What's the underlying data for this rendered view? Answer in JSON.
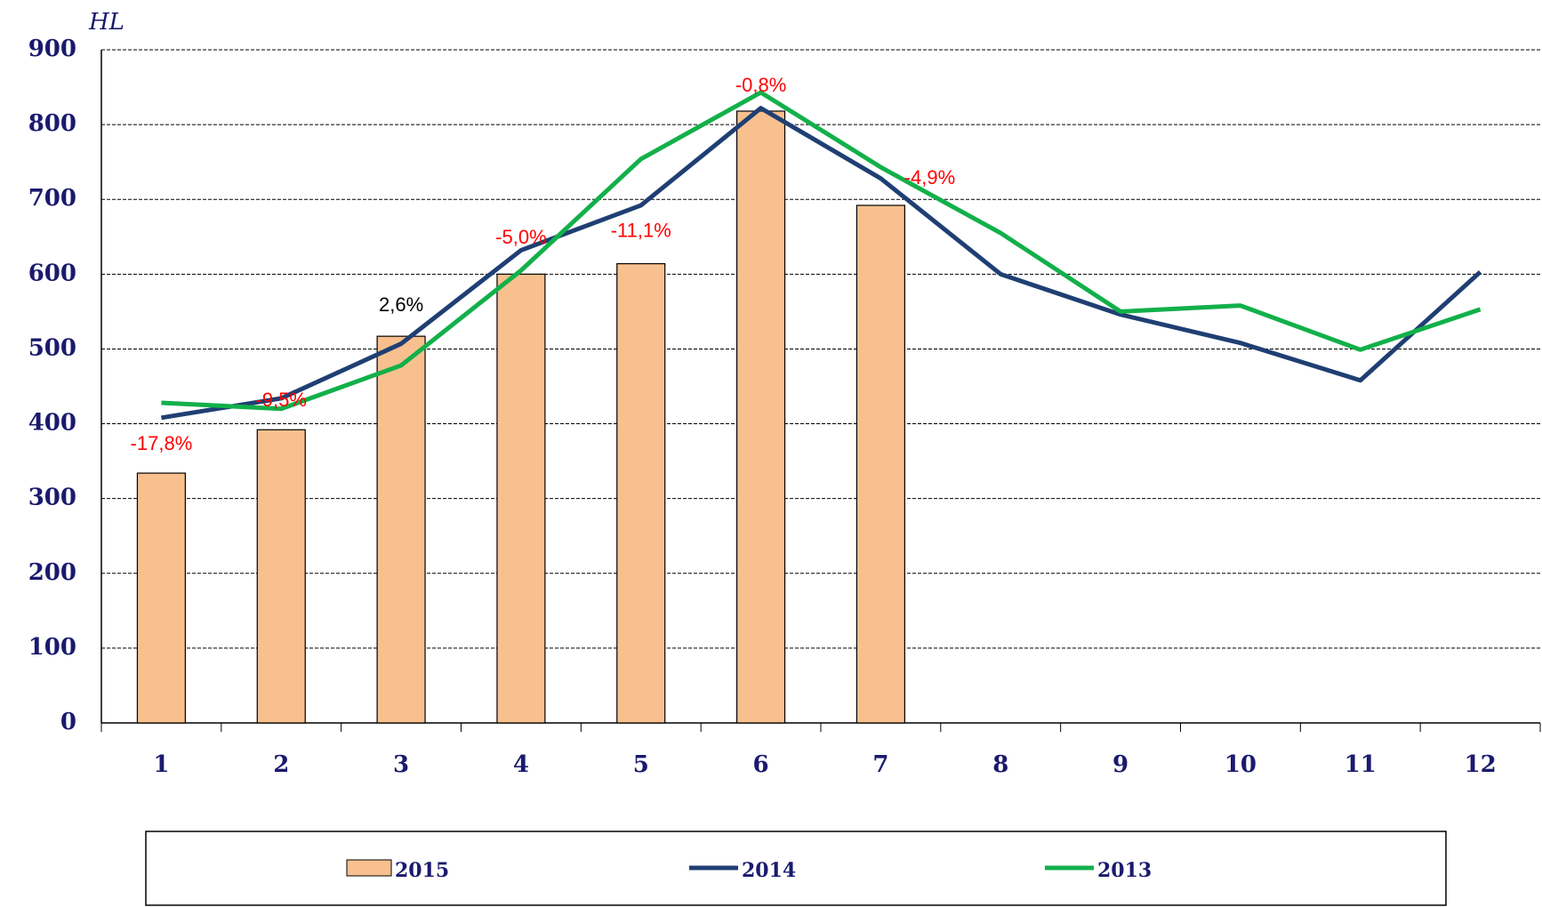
{
  "chart_data": {
    "type": "bar-line",
    "y_label": "HL",
    "categories": [
      "1",
      "2",
      "3",
      "4",
      "5",
      "6",
      "7",
      "8",
      "9",
      "10",
      "11",
      "12"
    ],
    "series": [
      {
        "name": "2015",
        "type": "bar",
        "color": "#f8c08e",
        "values": [
          334,
          392,
          517,
          600,
          614,
          818,
          692,
          null,
          null,
          null,
          null,
          null
        ]
      },
      {
        "name": "2014",
        "type": "line",
        "color": "#1f3f73",
        "values": [
          408,
          434,
          507,
          632,
          692,
          822,
          728,
          600,
          546,
          508,
          458,
          603
        ]
      },
      {
        "name": "2013",
        "type": "line",
        "color": "#12b04a",
        "values": [
          428,
          420,
          478,
          605,
          754,
          843,
          743,
          655,
          550,
          558,
          499,
          553
        ]
      }
    ],
    "annotations": [
      "-17,8%",
      "-9,5%",
      "2,6%",
      "-5,0%",
      "-11,1%",
      "-0,8%",
      "-4,9%"
    ],
    "annotation_colors": [
      "#ff0000",
      "#ff0000",
      "#000000",
      "#ff0000",
      "#ff0000",
      "#ff0000",
      "#ff0000"
    ],
    "ylim": [
      0,
      900
    ],
    "yticks": [
      0,
      100,
      200,
      300,
      400,
      500,
      600,
      700,
      800,
      900
    ],
    "grid": true
  }
}
